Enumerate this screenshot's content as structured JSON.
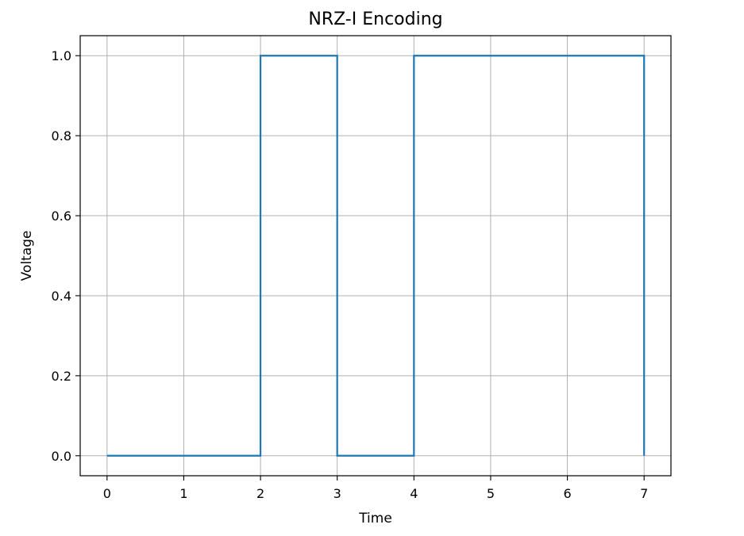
{
  "chart_data": {
    "type": "line",
    "step": "post",
    "title": "NRZ-I Encoding",
    "xlabel": "Time",
    "ylabel": "Voltage",
    "x": [
      0,
      1,
      2,
      3,
      4,
      5,
      6,
      7
    ],
    "y": [
      0,
      0,
      1,
      0,
      1,
      1,
      1,
      0
    ],
    "xlim": [
      -0.35,
      7.35
    ],
    "ylim": [
      -0.05,
      1.05
    ],
    "xticks": [
      0,
      1,
      2,
      3,
      4,
      5,
      6,
      7
    ],
    "xtick_labels": [
      "0",
      "1",
      "2",
      "3",
      "4",
      "5",
      "6",
      "7"
    ],
    "yticks": [
      0.0,
      0.2,
      0.4,
      0.6,
      0.8,
      1.0
    ],
    "ytick_labels": [
      "0.0",
      "0.2",
      "0.4",
      "0.6",
      "0.8",
      "1.0"
    ],
    "grid": true,
    "line_color": "#1f77b4",
    "grid_color": "#b0b0b0"
  }
}
